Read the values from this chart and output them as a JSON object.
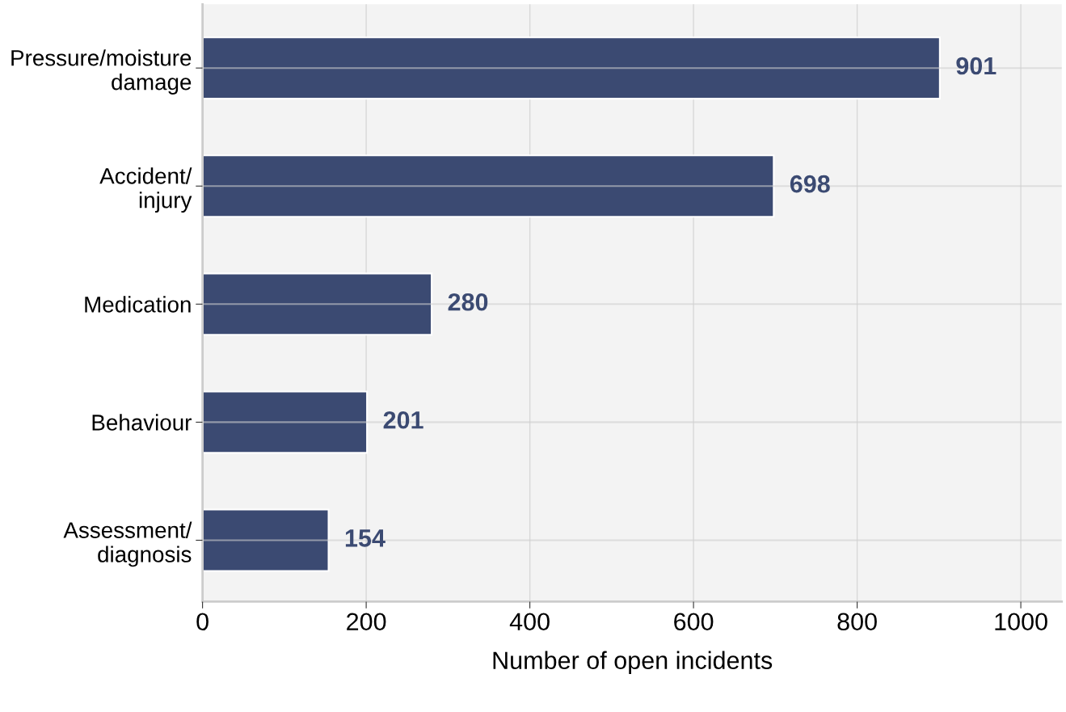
{
  "chart_data": {
    "type": "bar",
    "orientation": "horizontal",
    "xlabel": "Number of open incidents",
    "categories": [
      "Pressure/moisture\ndamage",
      "Accident/\ninjury",
      "Medication",
      "Behaviour",
      "Assessment/\ndiagnosis"
    ],
    "values": [
      901,
      698,
      280,
      201,
      154
    ],
    "color": "#3b4a72",
    "data_labels": true,
    "xlim": [
      0,
      1050
    ],
    "xticks": [
      0,
      200,
      400,
      600,
      800,
      1000
    ],
    "grid": true
  }
}
